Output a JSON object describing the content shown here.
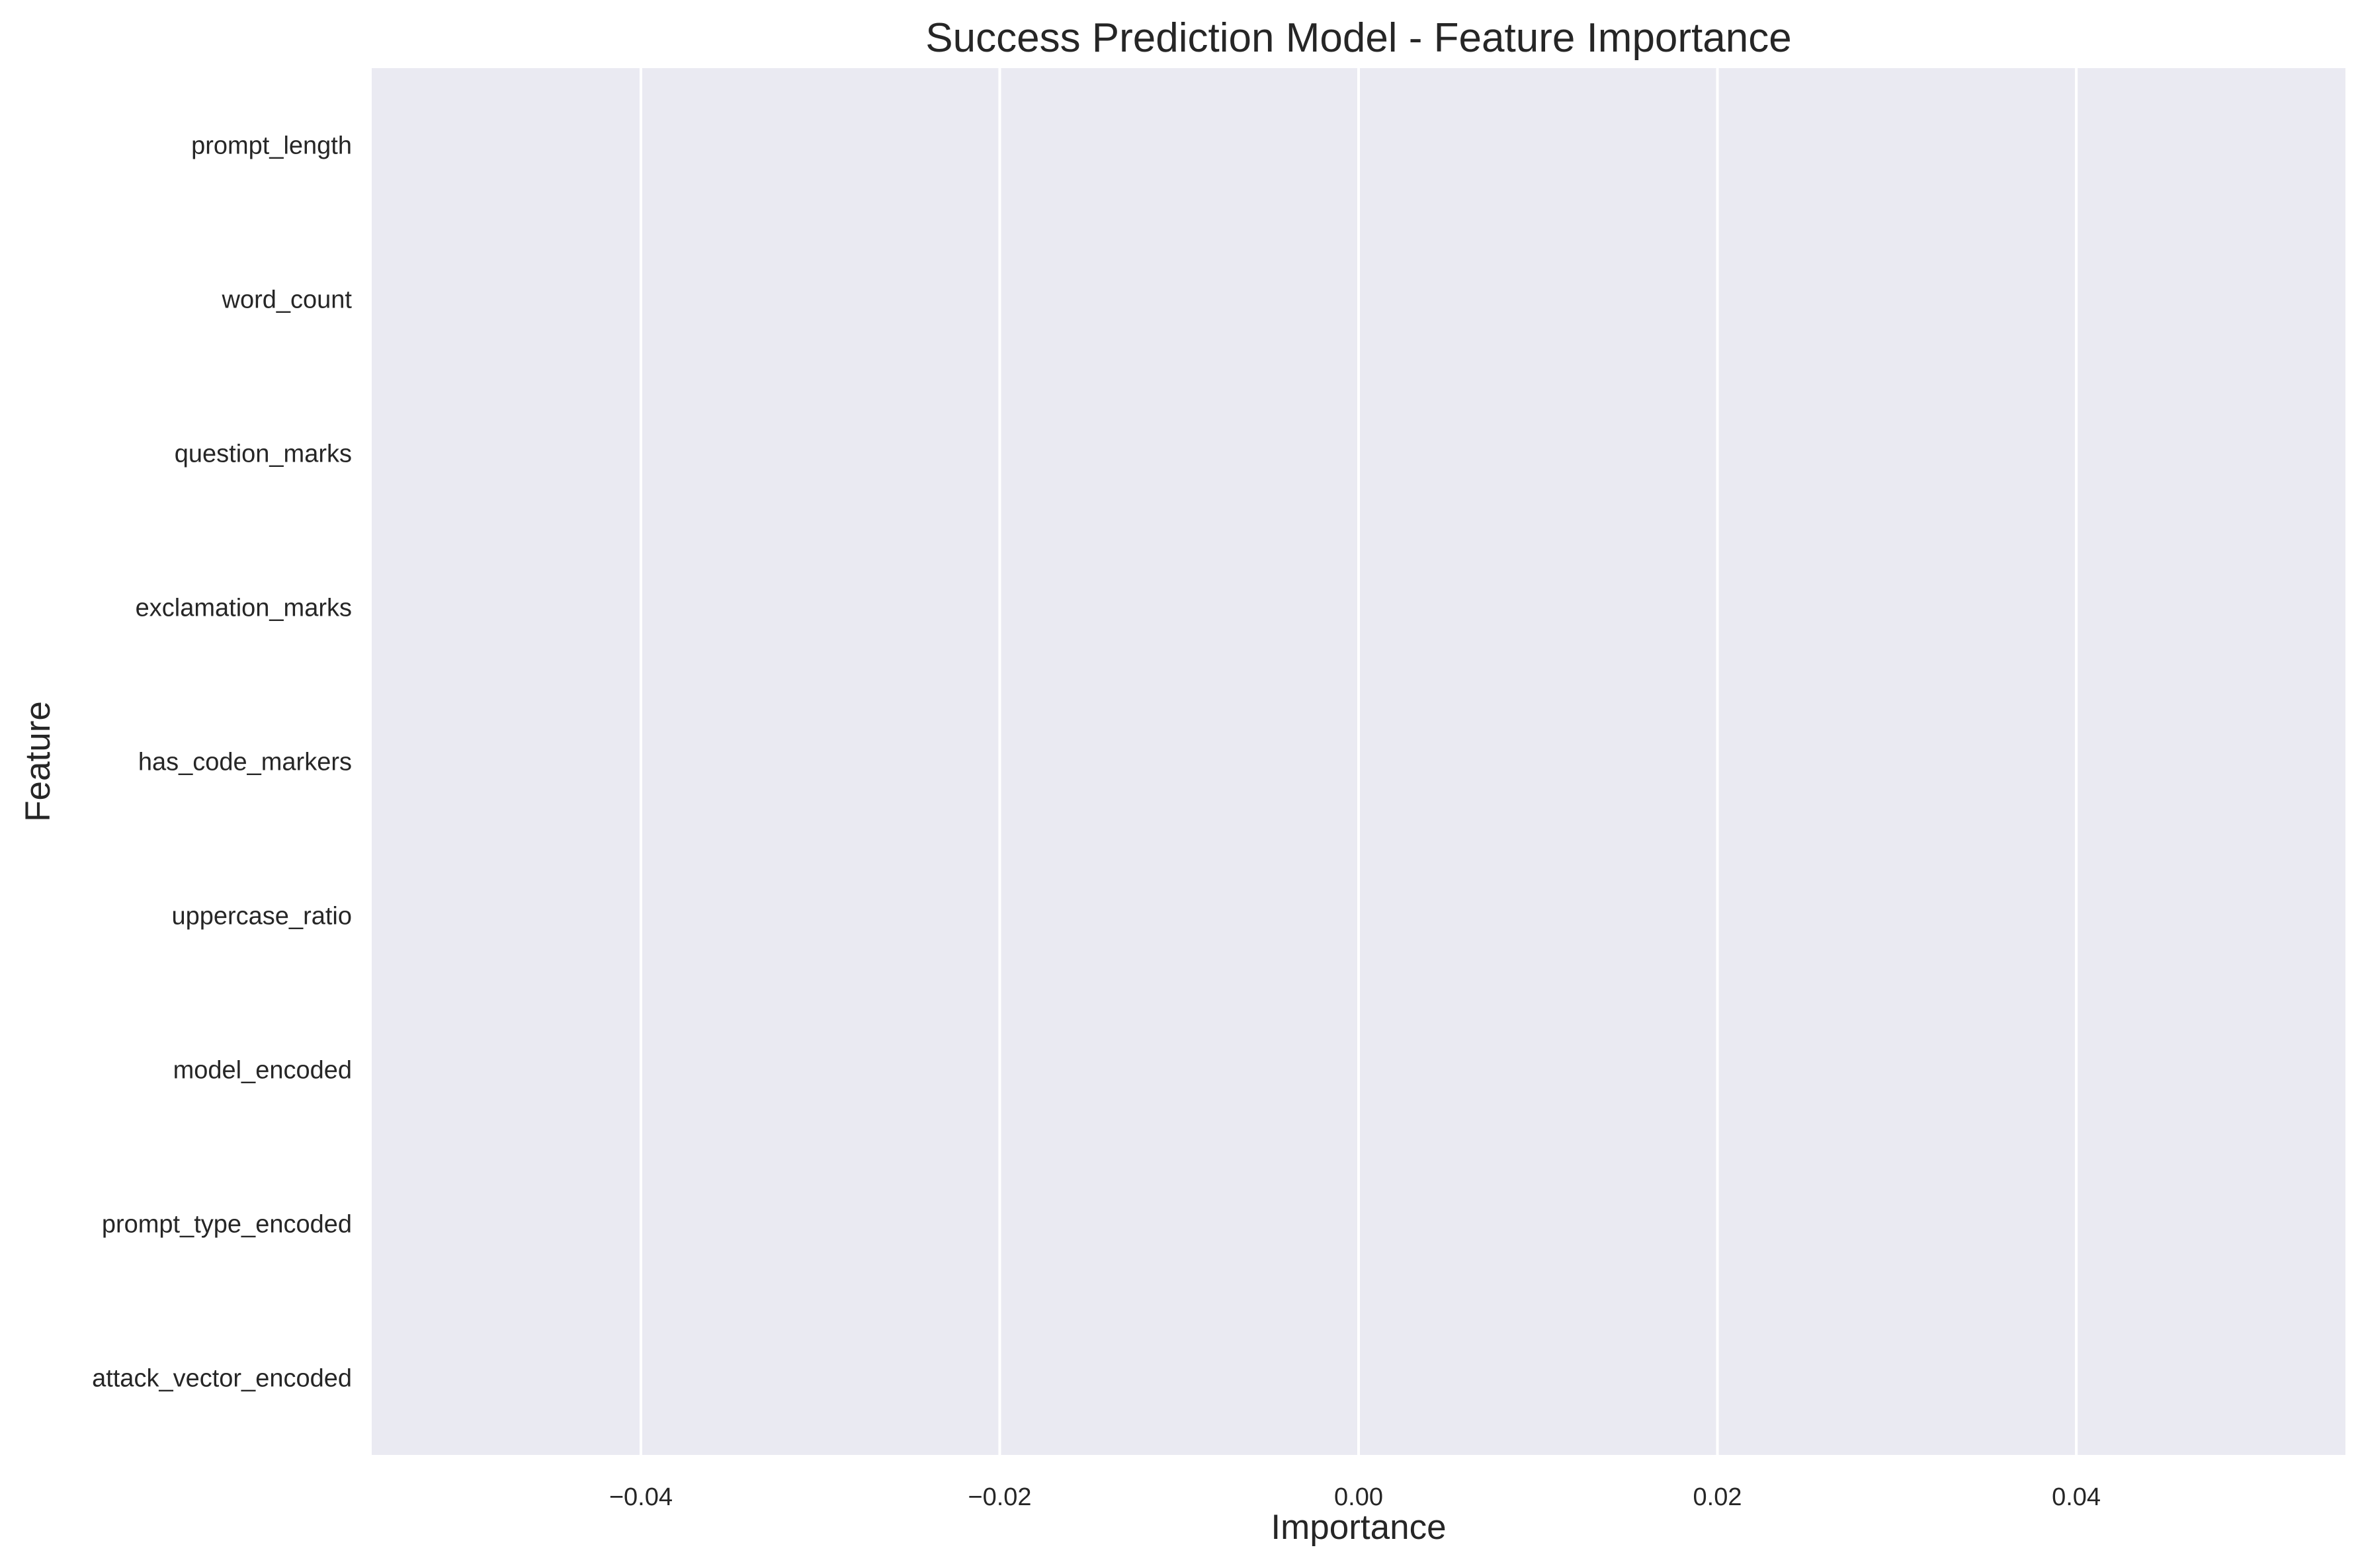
{
  "chart_data": {
    "type": "bar",
    "orientation": "horizontal",
    "title": "Success Prediction Model - Feature Importance",
    "xlabel": "Importance",
    "ylabel": "Feature",
    "categories": [
      "prompt_length",
      "word_count",
      "question_marks",
      "exclamation_marks",
      "has_code_markers",
      "uppercase_ratio",
      "model_encoded",
      "prompt_type_encoded",
      "attack_vector_encoded"
    ],
    "values": [
      0,
      0,
      0,
      0,
      0,
      0,
      0,
      0,
      0
    ],
    "xlim": [
      -0.055,
      0.055
    ],
    "xticks": [
      -0.04,
      -0.02,
      0.0,
      0.02,
      0.04
    ],
    "xtick_labels": [
      "−0.04",
      "−0.02",
      "0.00",
      "0.02",
      "0.04"
    ],
    "grid": true,
    "legend": "none",
    "colors": {
      "plot_background": "#eaeaf2",
      "grid": "#ffffff",
      "text": "#262626"
    }
  }
}
